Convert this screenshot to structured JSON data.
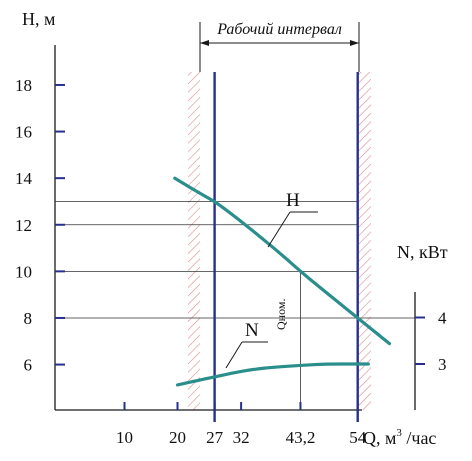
{
  "chart_data": {
    "type": "line",
    "xlabel": "Q, м",
    "xlabel_sup": "3",
    "xlabel_tail": " /час",
    "ylabel_left": "H, м",
    "ylabel_right": "N, кВт",
    "x_ticks": [
      {
        "value": 10,
        "label": "10"
      },
      {
        "value": 20,
        "label": "20"
      },
      {
        "value": 27,
        "label": "27"
      },
      {
        "value": 32,
        "label": "32"
      },
      {
        "value": 43.2,
        "label": "43,2"
      },
      {
        "value": 54,
        "label": "54"
      }
    ],
    "y_ticks_left": [
      {
        "value": 6,
        "label": "6"
      },
      {
        "value": 8,
        "label": "8"
      },
      {
        "value": 10,
        "label": "10"
      },
      {
        "value": 12,
        "label": "12"
      },
      {
        "value": 14,
        "label": "14"
      },
      {
        "value": 16,
        "label": "16"
      },
      {
        "value": 18,
        "label": "18"
      }
    ],
    "y_ticks_right": [
      {
        "value": 3,
        "label": "3"
      },
      {
        "value": 4,
        "label": "4"
      }
    ],
    "series": [
      {
        "name": "H",
        "axis": "left",
        "color": "#2a8f8c",
        "points": [
          [
            19.5,
            14.0
          ],
          [
            22,
            13.65
          ],
          [
            25,
            13.25
          ],
          [
            27,
            13.0
          ],
          [
            30,
            12.5
          ],
          [
            35,
            11.6
          ],
          [
            40,
            10.65
          ],
          [
            43.2,
            10.0
          ],
          [
            48,
            9.1
          ],
          [
            54,
            8.0
          ],
          [
            57,
            7.45
          ],
          [
            60,
            6.9
          ]
        ]
      },
      {
        "name": "N",
        "axis": "right",
        "color": "#2a8f8c",
        "points": [
          [
            20,
            2.55
          ],
          [
            24,
            2.65
          ],
          [
            27,
            2.72
          ],
          [
            30,
            2.8
          ],
          [
            34,
            2.88
          ],
          [
            38,
            2.93
          ],
          [
            43.2,
            2.97
          ],
          [
            48,
            3.0
          ],
          [
            54,
            3.0
          ],
          [
            56,
            3.0
          ]
        ]
      }
    ],
    "series_labels": [
      "H",
      "N"
    ],
    "interval_label": "Рабочий интервал",
    "interval": [
      27,
      54
    ],
    "nominal_label": "Qном.",
    "nominal_q": 43.2,
    "reference_h_lines": [
      13.0,
      12.0,
      10.0,
      8.0
    ],
    "colors": {
      "curve": "#2a8f8c",
      "interval_line": "#27308f",
      "hatch": "#d98c8c",
      "axis": "#1a1a1a"
    }
  }
}
